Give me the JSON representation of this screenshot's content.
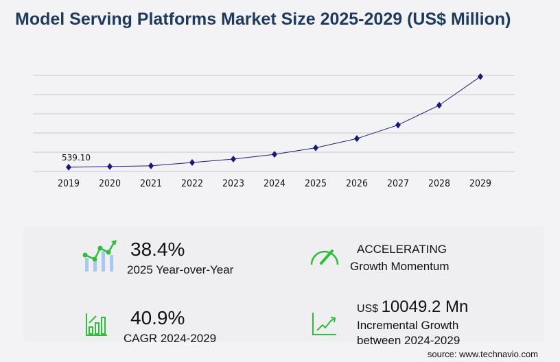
{
  "title": "Model Serving Platforms Market Size 2025-2029 (US$ Million)",
  "chart_data": {
    "type": "line",
    "title": "Model Serving Platforms Market Size 2025-2029 (US$ Million)",
    "categories": [
      "2019",
      "2020",
      "2021",
      "2022",
      "2023",
      "2024",
      "2025",
      "2026",
      "2027",
      "2028",
      "2029"
    ],
    "values": [
      539.1,
      627,
      715,
      1155,
      1595,
      2200,
      3045,
      4235,
      5995,
      8547,
      12249
    ],
    "data_labels": {
      "2019": "539.10"
    },
    "ylim": [
      0,
      12400
    ],
    "grid": true,
    "line_color": "#1a1a7a",
    "marker": "diamond"
  },
  "stats": {
    "yoy_value": "38.4%",
    "yoy_label": "2025 Year-over-Year",
    "momentum_value": "ACCELERATING",
    "momentum_label": "Growth Momentum",
    "cagr_value": "40.9%",
    "cagr_label": "CAGR 2024-2029",
    "incr_prefix": "US$",
    "incr_value": "10049.2 Mn",
    "incr_label1": "Incremental Growth",
    "incr_label2": "between 2024-2029"
  },
  "source": "source: www.technavio.com",
  "colors": {
    "accent_green": "#2dbf3a",
    "title": "#1e3a5f",
    "bar_blue": "#a9c8f0"
  }
}
